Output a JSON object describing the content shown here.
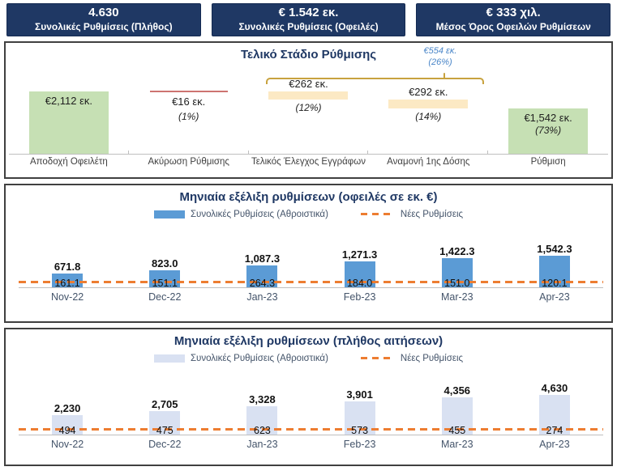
{
  "kpis": [
    {
      "value": "4.630",
      "label": "Συνολικές Ρυθμίσεις (Πλήθος)"
    },
    {
      "value": "€ 1.542 εκ.",
      "label": "Συνολικές Ρυθμίσεις (Οφειλές)"
    },
    {
      "value": "€ 333 χιλ.",
      "label": "Μέσος Όρος Οφειλών Ρυθμίσεων"
    }
  ],
  "colors": {
    "kpi_bg": "#1F3864",
    "title_text": "#1F3864",
    "green_bar": "#C6E0B4",
    "gold_bar": "#FCE9C4",
    "red_cancel_line": "#CD7371",
    "bracket": "#C8A23E",
    "bracket_text": "#4A86C8",
    "debt_bar": "#5B9BD5",
    "count_bar": "#D9E1F2",
    "new_series": "#ED7D31"
  },
  "chart_data": [
    {
      "type": "bar",
      "subtype": "waterfall",
      "title": "Τελικό Στάδιο Ρύθμισης",
      "unit": "εκ. €",
      "categories": [
        "Αποδοχή Οφειλέτη",
        "Ακύρωση Ρύθμισης",
        "Τελικός Έλεγχος Εγγράφων",
        "Αναμονή 1ης Δόσης",
        "Ρύθμιση"
      ],
      "values": [
        2112,
        16,
        262,
        292,
        1542
      ],
      "value_labels": [
        "€2,112 εκ.",
        "€16 εκ.",
        "€262 εκ.",
        "€292 εκ.",
        "€1,542 εκ."
      ],
      "pct_labels": [
        "",
        "(1%)",
        "(12%)",
        "(14%)",
        "(73%)"
      ],
      "col_styles": [
        "total",
        "cancel",
        "float",
        "float",
        "total"
      ],
      "bracket": {
        "value": 554,
        "value_label": "€554 εκ.",
        "pct_label": "(26%)",
        "spans": [
          "Τελικός Έλεγχος Εγγράφων",
          "Αναμονή 1ης Δόσης"
        ]
      },
      "grid": false
    },
    {
      "type": "bar",
      "title": "Μηνιαία εξέλιξη ρυθμίσεων (οφειλές σε εκ. €)",
      "categories": [
        "Nov-22",
        "Dec-22",
        "Jan-23",
        "Feb-23",
        "Mar-23",
        "Apr-23"
      ],
      "series": [
        {
          "name": "Συνολικές Ρυθμίσεις (Αθροιστικά)",
          "type": "bar",
          "color": "#5B9BD5",
          "values": [
            671.8,
            823.0,
            1087.3,
            1271.3,
            1422.3,
            1542.3
          ],
          "labels": [
            "671.8",
            "823.0",
            "1,087.3",
            "1,271.3",
            "1,422.3",
            "1,542.3"
          ]
        },
        {
          "name": "Νέες Ρυθμίσεις",
          "type": "dashed-line",
          "color": "#ED7D31",
          "values": [
            161.1,
            151.1,
            264.3,
            184.0,
            151.0,
            120.1
          ],
          "labels": [
            "161.1",
            "151.1",
            "264.3",
            "184.0",
            "151.0",
            "120.1"
          ]
        }
      ],
      "ylim": [
        0,
        1600
      ],
      "legend_position": "top",
      "grid": false
    },
    {
      "type": "bar",
      "title": "Μηνιαία εξέλιξη ρυθμίσεων (πλήθος αιτήσεων)",
      "categories": [
        "Nov-22",
        "Dec-22",
        "Jan-23",
        "Feb-23",
        "Mar-23",
        "Apr-23"
      ],
      "series": [
        {
          "name": "Συνολικές Ρυθμίσεις (Αθροιστικά)",
          "type": "bar",
          "color": "#D9E1F2",
          "values": [
            2230,
            2705,
            3328,
            3901,
            4356,
            4630
          ],
          "labels": [
            "2,230",
            "2,705",
            "3,328",
            "3,901",
            "4,356",
            "4,630"
          ]
        },
        {
          "name": "Νέες Ρυθμίσεις",
          "type": "dashed-line",
          "color": "#ED7D31",
          "values": [
            494,
            475,
            623,
            573,
            455,
            274
          ],
          "labels": [
            "494",
            "475",
            "623",
            "573",
            "455",
            "274"
          ]
        }
      ],
      "ylim": [
        0,
        4800
      ],
      "legend_position": "top",
      "grid": false
    }
  ]
}
